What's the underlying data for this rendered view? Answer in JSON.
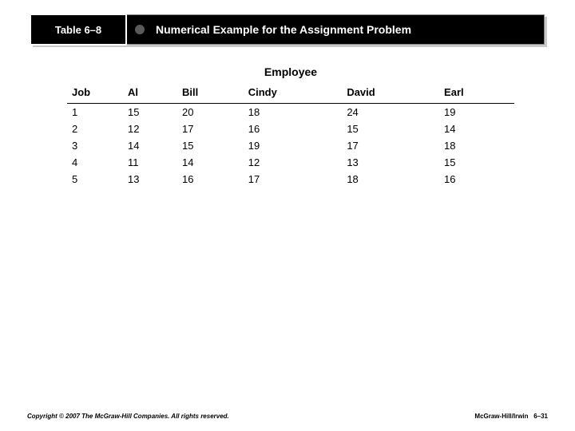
{
  "title_bar": {
    "left_label": "Table 6–8",
    "heading": "Numerical Example for the Assignment Problem",
    "bg_color": "#000000",
    "text_color": "#ffffff",
    "shadow_color": "#c9c9c9",
    "bullet_color": "#5a5a5a"
  },
  "table": {
    "super_header": "Employee",
    "columns": [
      "Job",
      "Al",
      "Bill",
      "Cindy",
      "David",
      "Earl"
    ],
    "rows": [
      [
        "1",
        "15",
        "20",
        "18",
        "24",
        "19"
      ],
      [
        "2",
        "12",
        "17",
        "16",
        "15",
        "14"
      ],
      [
        "3",
        "14",
        "15",
        "19",
        "17",
        "18"
      ],
      [
        "4",
        "11",
        "14",
        "12",
        "13",
        "15"
      ],
      [
        "5",
        "13",
        "16",
        "17",
        "18",
        "16"
      ]
    ],
    "header_fontsize": 13,
    "body_fontsize": 13,
    "border_color": "#000000"
  },
  "footer": {
    "copyright": "Copyright © 2007 The McGraw-Hill Companies. All rights reserved.",
    "publisher": "McGraw-Hill/Irwin",
    "page": "6–31"
  }
}
